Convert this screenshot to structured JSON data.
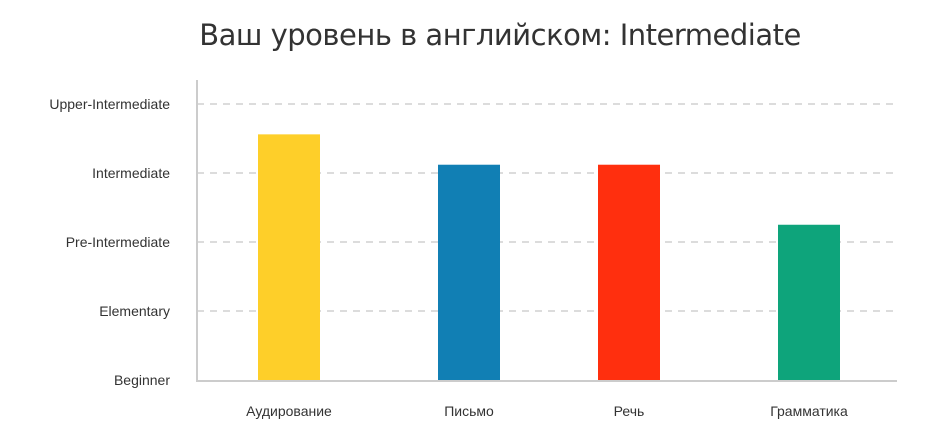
{
  "chart_data": {
    "type": "bar",
    "title": "Ваш уровень в английском: Intermediate",
    "categories": [
      "Аудирование",
      "Письмо",
      "Речь",
      "Грамматика"
    ],
    "values": [
      3.56,
      3.12,
      3.12,
      2.25
    ],
    "colors": [
      "#fecf29",
      "#117fb4",
      "#ff2f0e",
      "#0ea47b"
    ],
    "y_ticks": [
      "Beginner",
      "Elementary",
      "Pre-Intermediate",
      "Intermediate",
      "Upper-Intermediate"
    ],
    "ylim": [
      0,
      4
    ],
    "grid": true,
    "xlabel": "",
    "ylabel": ""
  }
}
